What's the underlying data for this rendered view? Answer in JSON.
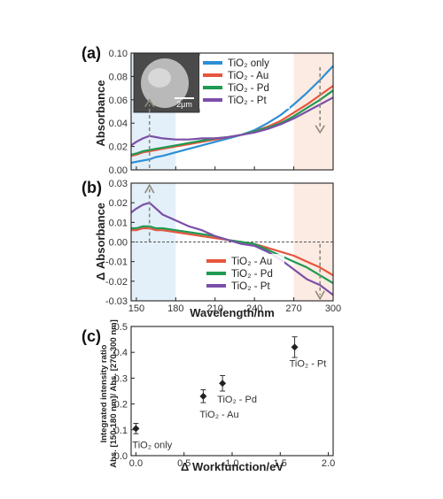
{
  "chart_data": [
    {
      "panel": "(a)",
      "type": "line",
      "xlabel": "",
      "ylabel": "Absorbance",
      "xlim": [
        146,
        300
      ],
      "ylim": [
        0.0,
        0.1
      ],
      "xticks": [
        150,
        180,
        210,
        240,
        270,
        300
      ],
      "yticks": [
        "0.00",
        "0.02",
        "0.04",
        "0.06",
        "0.08",
        "0.10"
      ],
      "inset_label": "2μm",
      "legend_position": "top-right",
      "series": [
        {
          "name": "TiO₂ only",
          "color": "#2b8fd6",
          "x": [
            146,
            150,
            155,
            160,
            165,
            170,
            180,
            190,
            200,
            210,
            220,
            230,
            240,
            250,
            260,
            270,
            280,
            290,
            300
          ],
          "y": [
            0.006,
            0.007,
            0.008,
            0.009,
            0.011,
            0.012,
            0.015,
            0.018,
            0.021,
            0.024,
            0.027,
            0.03,
            0.034,
            0.04,
            0.047,
            0.056,
            0.066,
            0.077,
            0.089
          ]
        },
        {
          "name": "TiO₂ - Au",
          "color": "#e8553e",
          "x": [
            146,
            150,
            155,
            160,
            165,
            170,
            180,
            190,
            200,
            210,
            220,
            230,
            240,
            250,
            260,
            270,
            280,
            290,
            300
          ],
          "y": [
            0.012,
            0.013,
            0.015,
            0.016,
            0.017,
            0.018,
            0.02,
            0.022,
            0.024,
            0.026,
            0.028,
            0.03,
            0.033,
            0.037,
            0.042,
            0.049,
            0.056,
            0.064,
            0.072
          ]
        },
        {
          "name": "TiO₂ - Pd",
          "color": "#1f9a53",
          "x": [
            146,
            150,
            155,
            160,
            165,
            170,
            180,
            190,
            200,
            210,
            220,
            230,
            240,
            250,
            260,
            270,
            280,
            290,
            300
          ],
          "y": [
            0.013,
            0.014,
            0.016,
            0.017,
            0.018,
            0.019,
            0.021,
            0.023,
            0.025,
            0.027,
            0.028,
            0.03,
            0.033,
            0.036,
            0.04,
            0.046,
            0.053,
            0.06,
            0.068
          ]
        },
        {
          "name": "TiO₂ - Pt",
          "color": "#7c4fa8",
          "x": [
            146,
            150,
            155,
            160,
            165,
            170,
            180,
            190,
            200,
            210,
            220,
            230,
            240,
            250,
            260,
            270,
            280,
            290,
            300
          ],
          "y": [
            0.021,
            0.024,
            0.027,
            0.029,
            0.028,
            0.027,
            0.026,
            0.026,
            0.027,
            0.027,
            0.028,
            0.03,
            0.032,
            0.035,
            0.039,
            0.044,
            0.05,
            0.056,
            0.062
          ]
        }
      ]
    },
    {
      "panel": "(b)",
      "type": "line",
      "xlabel": "Wavelength/nm",
      "ylabel": "Δ Absorbance",
      "xlim": [
        146,
        300
      ],
      "ylim": [
        -0.03,
        0.03
      ],
      "xticks": [
        150,
        180,
        210,
        240,
        270,
        300
      ],
      "yticks": [
        "-0.03",
        "-0.02",
        "-0.01",
        "0.00",
        "0.01",
        "0.02",
        "0.03"
      ],
      "legend_position": "bottom-right",
      "series": [
        {
          "name": "TiO₂ - Au",
          "color": "#e8553e",
          "x": [
            146,
            150,
            155,
            160,
            165,
            170,
            180,
            190,
            200,
            210,
            220,
            230,
            240,
            250,
            260,
            270,
            280,
            290,
            300
          ],
          "y": [
            0.006,
            0.006,
            0.007,
            0.007,
            0.006,
            0.006,
            0.005,
            0.004,
            0.003,
            0.002,
            0.001,
            0.0,
            -0.001,
            -0.003,
            -0.005,
            -0.007,
            -0.01,
            -0.013,
            -0.017
          ]
        },
        {
          "name": "TiO₂ - Pd",
          "color": "#1f9a53",
          "x": [
            146,
            150,
            155,
            160,
            165,
            170,
            180,
            190,
            200,
            210,
            220,
            230,
            240,
            250,
            260,
            270,
            280,
            290,
            300
          ],
          "y": [
            0.007,
            0.007,
            0.008,
            0.008,
            0.007,
            0.007,
            0.006,
            0.005,
            0.004,
            0.003,
            0.001,
            0.0,
            -0.001,
            -0.004,
            -0.007,
            -0.01,
            -0.013,
            -0.017,
            -0.021
          ]
        },
        {
          "name": "TiO₂ - Pt",
          "color": "#7c4fa8",
          "x": [
            146,
            150,
            155,
            160,
            165,
            170,
            180,
            190,
            200,
            210,
            220,
            230,
            240,
            250,
            260,
            270,
            280,
            290,
            300
          ],
          "y": [
            0.015,
            0.017,
            0.019,
            0.02,
            0.017,
            0.014,
            0.011,
            0.008,
            0.006,
            0.003,
            0.001,
            -0.001,
            -0.002,
            -0.005,
            -0.009,
            -0.014,
            -0.019,
            -0.022,
            -0.027
          ]
        }
      ]
    },
    {
      "panel": "(c)",
      "type": "scatter",
      "xlabel": "Δ Workfunction/eV",
      "ylabel_lines": [
        "Integrated intensity ratio",
        "Abs. [150-180 nm]/ Abs. [270-300 nm]"
      ],
      "xlim": [
        -0.05,
        2.05
      ],
      "ylim": [
        0.0,
        0.5
      ],
      "xticks": [
        "0.0",
        "0.5",
        "1.0",
        "1.5",
        "2.0"
      ],
      "yticks": [
        "0.0",
        "0.1",
        "0.2",
        "0.3",
        "0.4",
        "0.5"
      ],
      "points": [
        {
          "label": "TiO₂ only",
          "x": 0.0,
          "y": 0.105,
          "err": 0.02
        },
        {
          "label": "TiO₂ - Au",
          "x": 0.7,
          "y": 0.23,
          "err": 0.025
        },
        {
          "label": "TiO₂ - Pd",
          "x": 0.9,
          "y": 0.28,
          "err": 0.03
        },
        {
          "label": "TiO₂ - Pt",
          "x": 1.65,
          "y": 0.42,
          "err": 0.04
        }
      ]
    }
  ]
}
